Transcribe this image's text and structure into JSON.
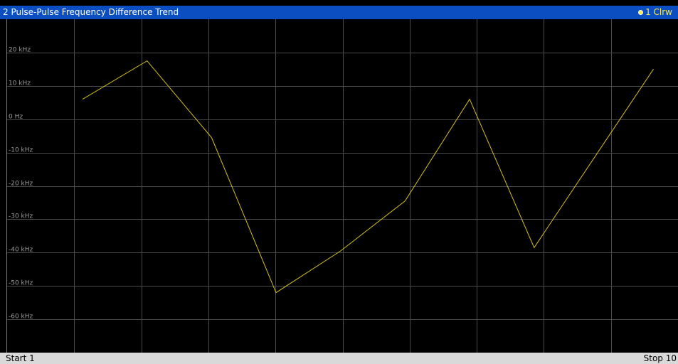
{
  "window": {
    "title": "2 Pulse-Pulse Frequency Difference Trend",
    "trace_label": "1 Clrw"
  },
  "footer": {
    "start_label": "Start 1",
    "stop_label": "Stop 10"
  },
  "colors": {
    "title_bar": "#0a4ec2",
    "background": "#000000",
    "grid": "#4a4a4a",
    "trace": "#d4c21a",
    "footer": "#d9d9d9"
  },
  "chart_data": {
    "type": "line",
    "title": "Pulse-Pulse Frequency Difference Trend",
    "xlabel": "",
    "ylabel": "",
    "x_range": [
      1,
      10
    ],
    "ylim": [
      -70,
      30
    ],
    "y_unit": "kHz",
    "grid": true,
    "ytick_values": [
      20,
      10,
      0,
      -10,
      -20,
      -30,
      -40,
      -50,
      -60
    ],
    "ytick_labels": [
      "20 kHz",
      "10 kHz",
      "0 Hz",
      "-10 kHz",
      "-20 kHz",
      "-30 kHz",
      "-40 kHz",
      "-50 kHz",
      "-60 kHz"
    ],
    "series": [
      {
        "x": [
          1,
          2,
          3,
          4,
          5,
          6,
          7,
          8,
          9.85
        ],
        "values": [
          6,
          17.5,
          -5.5,
          -52,
          -39.5,
          -24.5,
          6,
          -38.5,
          15
        ]
      }
    ]
  }
}
